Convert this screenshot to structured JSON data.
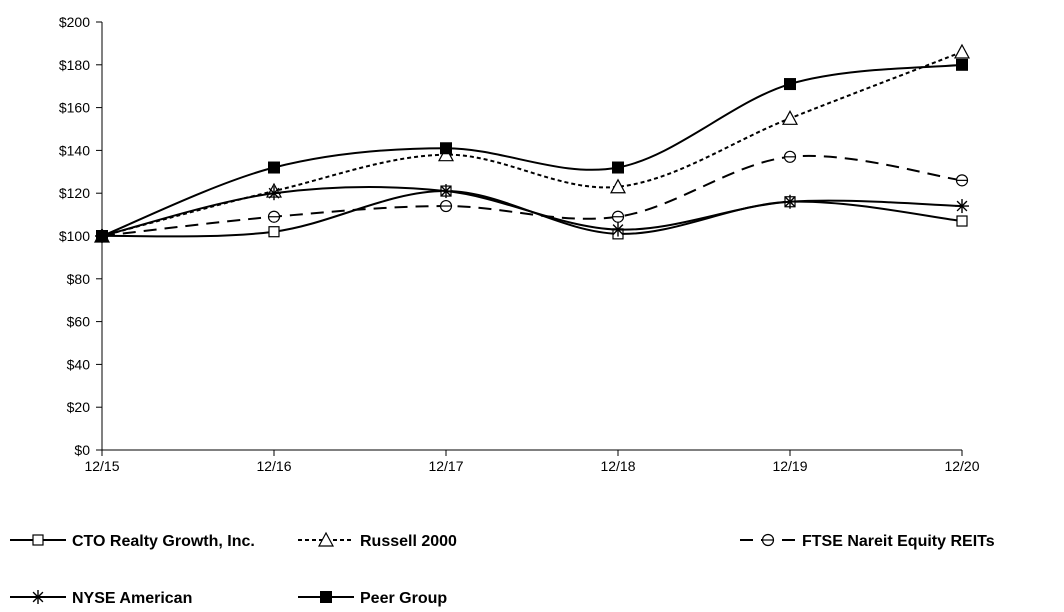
{
  "chart_data": {
    "type": "line",
    "title": "",
    "xlabel": "",
    "ylabel": "",
    "categories": [
      "12/15",
      "12/16",
      "12/17",
      "12/18",
      "12/19",
      "12/20"
    ],
    "y_ticks": [
      "$0",
      "$20",
      "$40",
      "$60",
      "$80",
      "$100",
      "$120",
      "$140",
      "$160",
      "$180",
      "$200"
    ],
    "ylim": [
      0,
      200
    ],
    "grid": false,
    "legend_position": "bottom",
    "series": [
      {
        "name": "CTO Realty Growth, Inc.",
        "values": [
          100,
          102,
          121,
          101,
          116,
          107
        ],
        "marker": "square-open",
        "line_style": "solid",
        "color": "#000000"
      },
      {
        "name": "Russell 2000",
        "values": [
          100,
          121,
          138,
          123,
          155,
          186
        ],
        "marker": "triangle-open",
        "line_style": "dotted",
        "color": "#000000"
      },
      {
        "name": "FTSE Nareit Equity REITs",
        "values": [
          100,
          109,
          114,
          109,
          137,
          126
        ],
        "marker": "circle-slash-open",
        "line_style": "dashed",
        "color": "#000000"
      },
      {
        "name": "NYSE American",
        "values": [
          100,
          120,
          121,
          103,
          116,
          114
        ],
        "marker": "star",
        "line_style": "solid",
        "color": "#000000"
      },
      {
        "name": "Peer Group",
        "values": [
          100,
          132,
          141,
          132,
          171,
          180
        ],
        "marker": "square-filled",
        "line_style": "solid",
        "color": "#000000"
      }
    ]
  }
}
